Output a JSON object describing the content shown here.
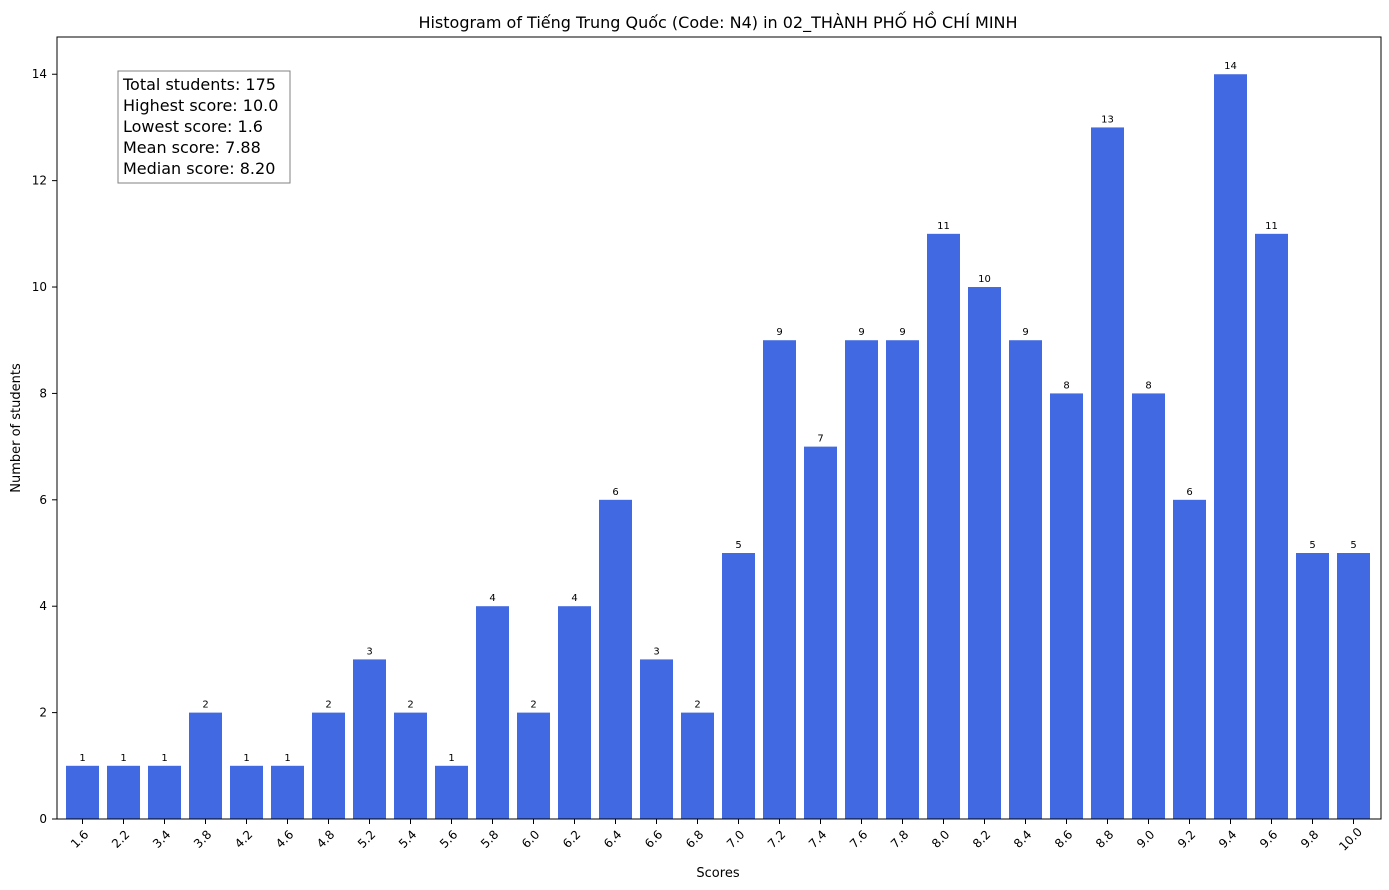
{
  "chart_data": {
    "type": "bar",
    "title": "Histogram of Tiếng Trung Quốc (Code: N4) in 02_THÀNH PHỐ HỒ CHÍ MINH",
    "xlabel": "Scores",
    "ylabel": "Number of students",
    "categories": [
      "1.6",
      "2.2",
      "3.4",
      "3.8",
      "4.2",
      "4.6",
      "4.8",
      "5.2",
      "5.4",
      "5.6",
      "5.8",
      "6.0",
      "6.2",
      "6.4",
      "6.6",
      "6.8",
      "7.0",
      "7.2",
      "7.4",
      "7.6",
      "7.8",
      "8.0",
      "8.2",
      "8.4",
      "8.6",
      "8.8",
      "9.0",
      "9.2",
      "9.4",
      "9.6",
      "9.8",
      "10.0"
    ],
    "values": [
      1,
      1,
      1,
      2,
      1,
      1,
      2,
      3,
      2,
      1,
      4,
      2,
      4,
      6,
      3,
      2,
      5,
      9,
      7,
      9,
      9,
      11,
      10,
      9,
      8,
      13,
      8,
      6,
      14,
      11,
      5,
      5
    ],
    "ylim": [
      0,
      14.7
    ],
    "yticks": [
      0,
      2,
      4,
      6,
      8,
      10,
      12,
      14
    ],
    "color": "#4169e1",
    "grid": false,
    "stats_box": [
      "Total students: 175",
      "Highest score: 10.0",
      "Lowest score: 1.6",
      "Mean score: 7.88",
      "Median score: 8.20"
    ]
  }
}
